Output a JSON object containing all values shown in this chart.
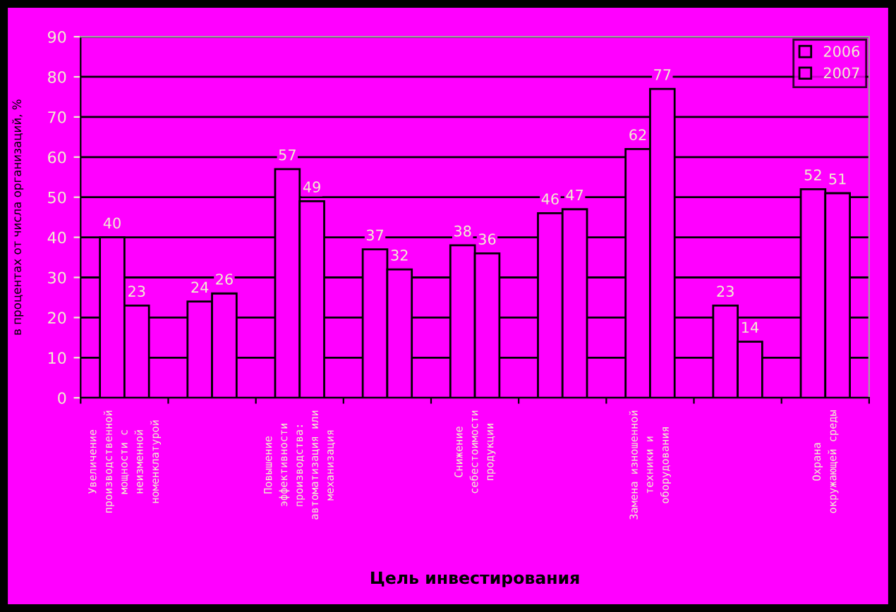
{
  "chart_data": {
    "type": "bar",
    "xlabel": "Цель инвестирования",
    "ylabel": "в процентах от числа организаций, %",
    "categories": [
      "Увеличение\nпроизводственной\nмощности с\nнеизменной\nноменклатурой",
      null,
      "Повышение\nэффективности\nпроизводства:\nавтоматизация или\nмеханизация",
      null,
      "Снижение\nсебестоимости\nпродукции",
      null,
      "Замена изношенной\nтехники и\nоборудования",
      null,
      "Охрана\nокружающей среды"
    ],
    "series": [
      {
        "name": "2006",
        "color": "#ff00ff",
        "values": [
          40,
          24,
          57,
          37,
          38,
          46,
          62,
          23,
          52
        ]
      },
      {
        "name": "2007",
        "color": "#ff00ff",
        "values": [
          23,
          26,
          49,
          32,
          36,
          47,
          77,
          14,
          51
        ]
      }
    ],
    "ylim": [
      0,
      90
    ],
    "yticks": [
      0,
      10,
      20,
      30,
      40,
      50,
      60,
      70,
      80,
      90
    ],
    "grid": "y",
    "legend": "top right",
    "data_labels": true
  }
}
